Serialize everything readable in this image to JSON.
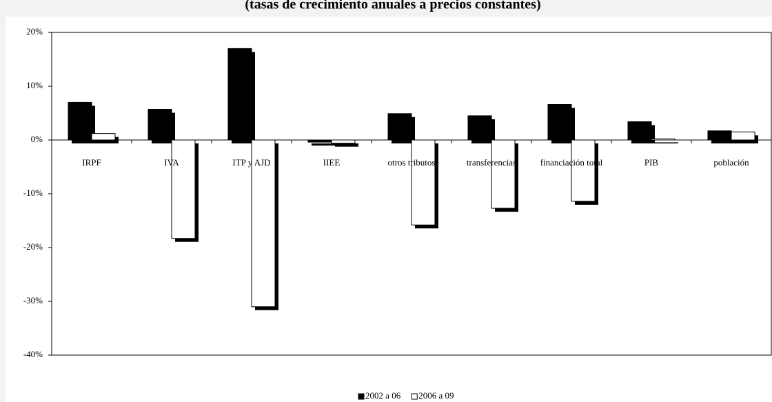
{
  "chart_data": {
    "type": "bar",
    "title": "(tasas de crecimiento anuales a precios constantes)",
    "categories": [
      "IRPF",
      "IVA",
      "ITP y AJD",
      "IIEE",
      "otros tributos",
      "transferencias",
      "financiación total",
      "PIB",
      "población"
    ],
    "series": [
      {
        "name": "2002 a 06",
        "color": "#000000",
        "values": [
          7.0,
          5.7,
          17.0,
          -0.4,
          4.9,
          4.5,
          6.6,
          3.4,
          1.7
        ]
      },
      {
        "name": "2006 a 09",
        "color": "#ffffff",
        "values": [
          1.2,
          -18.3,
          -31.0,
          -0.6,
          -15.8,
          -12.7,
          -11.4,
          0.2,
          1.5
        ]
      }
    ],
    "ylim": [
      -40,
      20
    ],
    "yticks": [
      {
        "value": -40,
        "label": "-40%"
      },
      {
        "value": -30,
        "label": "-30%"
      },
      {
        "value": -20,
        "label": "-20%"
      },
      {
        "value": -10,
        "label": "-10%"
      },
      {
        "value": 0,
        "label": "0%"
      },
      {
        "value": 10,
        "label": "10%"
      },
      {
        "value": 20,
        "label": "20%"
      }
    ],
    "legend": "bottom"
  }
}
